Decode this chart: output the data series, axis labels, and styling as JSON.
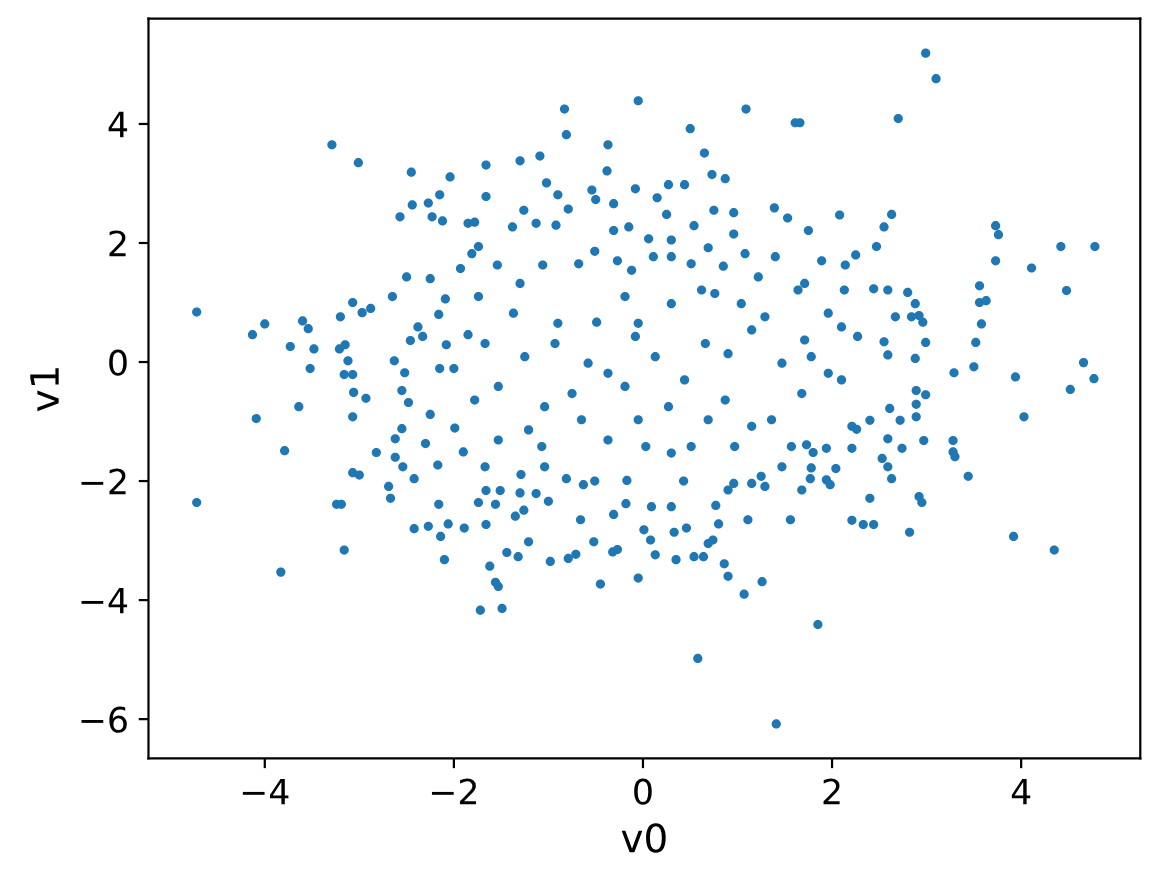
{
  "chart_data": {
    "type": "scatter",
    "xlabel": "v0",
    "ylabel": "v1",
    "marker": "circle",
    "xlim": [
      -5.23,
      5.26
    ],
    "ylim": [
      -6.66,
      5.77
    ],
    "xticks": [
      {
        "value": -4,
        "label": "−4"
      },
      {
        "value": -2,
        "label": "−2"
      },
      0,
      2,
      4
    ],
    "yticks": [
      {
        "value": -6,
        "label": "−6"
      },
      {
        "value": -4,
        "label": "−4"
      },
      {
        "value": -2,
        "label": "−2"
      },
      0,
      2,
      4
    ],
    "series": [
      {
        "color": "#1f77b4",
        "x": [
          -3.29,
          -3.01,
          -2.45,
          -2.04,
          -2.15,
          -2.27,
          -2.44,
          -2.57,
          -2.23,
          -2.12,
          -1.85,
          -1.74,
          -1.81,
          -1.93,
          -2.5,
          -2.25,
          -2.65,
          -3.07,
          -2.88,
          -2.97,
          -3.2,
          -3.6,
          -3.54,
          -4.0,
          -4.13,
          -4.72,
          -3.73,
          -3.48,
          -3.21,
          -3.15,
          -3.12,
          -3.52,
          -3.16,
          -3.07,
          -2.63,
          -2.52,
          -2.46,
          -2.38,
          -2.33,
          -2.09,
          -2.16,
          -2.08,
          -2.15,
          -2.0,
          -1.85,
          -4.72,
          -4.09,
          -3.64,
          -3.79,
          -3.83,
          -3.16,
          -3.24,
          -3.19,
          -3.06,
          -3.07,
          -2.93,
          -3.07,
          -3.0,
          -2.82,
          -2.69,
          -2.67,
          -2.55,
          -2.48,
          -2.55,
          -2.62,
          -2.62,
          -2.54,
          -2.42,
          -2.42,
          -2.27,
          -2.25,
          -2.3,
          -2.17,
          -2.16,
          -2.14,
          -2.06,
          -2.1,
          -1.89,
          -1.9,
          -1.72,
          -1.78,
          -1.99,
          -1.74,
          -0.83,
          -0.81,
          -0.05,
          1.09,
          1.61,
          1.66,
          0.5,
          -1.66,
          -1.3,
          -1.09,
          -0.37,
          -0.38,
          0.65,
          0.73,
          0.87,
          -1.02,
          -0.54,
          -0.5,
          -0.08,
          0.27,
          0.44,
          -1.66,
          -0.9,
          -0.79,
          -0.31,
          0.15,
          0.25,
          0.96,
          0.75,
          1.39,
          1.53,
          -1.26,
          -1.13,
          -0.92,
          -1.78,
          -1.38,
          -0.31,
          -0.15,
          0.54,
          0.96,
          0.06,
          0.3,
          1.75,
          2.99,
          3.1,
          2.7,
          2.08,
          2.63,
          2.55,
          3.73,
          3.76,
          3.73,
          2.47,
          4.42,
          4.78,
          4.11,
          4.48,
          3.56,
          3.56,
          3.63,
          3.58,
          3.52,
          3.5,
          3.29,
          3.94,
          4.66,
          4.77,
          4.52,
          2.99,
          2.88,
          2.88,
          2.84,
          2.92,
          2.96,
          2.8,
          2.44,
          2.59,
          2.67,
          2.55,
          2.27,
          2.59,
          2.25,
          1.89,
          2.14,
          2.13,
          1.96,
          2.1,
          1.78,
          1.96,
          2.1,
          1.85,
          2.82,
          2.21,
          2.33,
          2.44,
          2.4,
          3.92,
          4.35,
          4.03,
          3.44,
          3.28,
          3.28,
          3.3,
          2.92,
          2.95,
          2.97,
          2.89,
          2.89,
          2.89,
          2.99,
          2.72,
          2.74,
          2.59,
          2.61,
          2.53,
          2.59,
          2.63,
          2.21,
          2.26,
          2.21,
          2.4,
          2.04,
          1.94,
          1.98,
          1.78,
          1.77,
          1.68,
          1.73,
          1.8,
          1.94,
          0.58,
          1.41,
          -1.49,
          -1.62,
          -1.56,
          -1.53,
          -1.44,
          -1.32,
          -0.98,
          -0.79,
          -0.71,
          -0.45,
          -0.05,
          -0.52,
          -0.32,
          -0.27,
          0.13,
          0.35,
          0.54,
          0.64,
          0.86,
          0.9,
          1.07,
          1.26,
          -1.21,
          -1.66,
          -1.56,
          -1.35,
          -1.26,
          -1.66,
          -1.51,
          -1.3,
          -1.13,
          -1.0,
          -0.66,
          -0.31,
          -0.18,
          0.01,
          0.08,
          0.3,
          0.33,
          0.46,
          0.69,
          0.74,
          0.8,
          0.77,
          0.9,
          1.11,
          1.25,
          1.47,
          1.56,
          -0.81,
          -0.63,
          -0.51,
          -1.29,
          -1.04,
          -0.17,
          0.09,
          0.43,
          0.96,
          1.15,
          -1.74,
          -1.54,
          -1.3,
          -1.06,
          -0.68,
          -0.51,
          -0.27,
          -0.12,
          0.11,
          0.3,
          0.51,
          0.69,
          0.85,
          1.08,
          1.22,
          1.4,
          1.71,
          -1.37,
          -0.9,
          -0.49,
          -0.19,
          -0.05,
          0.3,
          0.62,
          0.76,
          1.04,
          1.29,
          1.64,
          -1.67,
          -1.25,
          -0.93,
          -0.58,
          -0.37,
          -0.08,
          0.13,
          0.44,
          0.66,
          0.9,
          1.15,
          1.47,
          1.71,
          -1.53,
          -1.53,
          -1.21,
          -1.04,
          -1.07,
          -0.75,
          -0.65,
          -0.37,
          -0.19,
          -0.05,
          0.03,
          0.27,
          0.3,
          0.51,
          0.69,
          0.87,
          0.97,
          1.15,
          1.36,
          1.57,
          1.68,
          1.29,
          -1.67
        ],
        "values": [
          3.65,
          3.35,
          3.19,
          3.11,
          2.81,
          2.67,
          2.64,
          2.44,
          2.44,
          2.37,
          2.33,
          1.94,
          1.82,
          1.57,
          1.43,
          1.4,
          1.1,
          1.0,
          0.9,
          0.83,
          0.76,
          0.69,
          0.56,
          0.64,
          0.46,
          0.84,
          0.26,
          0.22,
          0.22,
          0.29,
          0.02,
          -0.11,
          -0.21,
          -0.21,
          0.02,
          -0.18,
          0.36,
          0.59,
          0.43,
          1.06,
          0.8,
          0.29,
          -0.11,
          -0.11,
          0.46,
          -2.36,
          -0.95,
          -0.75,
          -1.49,
          -3.53,
          -3.16,
          -2.39,
          -2.39,
          -0.51,
          -0.92,
          -0.61,
          -1.86,
          -1.9,
          -1.52,
          -2.09,
          -2.29,
          -0.48,
          -0.68,
          -1.12,
          -1.29,
          -1.6,
          -1.76,
          -1.96,
          -2.8,
          -2.76,
          -0.88,
          -1.37,
          -1.73,
          -2.39,
          -2.93,
          -2.72,
          -3.32,
          -2.79,
          -1.51,
          -4.17,
          -0.64,
          -1.11,
          -2.36,
          4.25,
          3.82,
          4.39,
          4.25,
          4.02,
          4.02,
          3.92,
          3.31,
          3.38,
          3.46,
          3.65,
          3.21,
          3.51,
          3.15,
          3.08,
          3.01,
          2.89,
          2.73,
          2.91,
          2.98,
          2.98,
          2.78,
          2.81,
          2.57,
          2.66,
          2.76,
          2.48,
          2.51,
          2.55,
          2.59,
          2.42,
          2.55,
          2.33,
          2.3,
          2.35,
          2.27,
          2.21,
          2.27,
          2.29,
          2.15,
          2.07,
          2.05,
          2.21,
          5.19,
          4.76,
          4.09,
          2.47,
          2.48,
          2.27,
          2.29,
          2.14,
          1.7,
          1.94,
          1.94,
          1.94,
          1.58,
          1.2,
          1.28,
          1.0,
          1.03,
          0.64,
          0.33,
          -0.08,
          -0.18,
          -0.25,
          -0.01,
          -0.28,
          -0.46,
          0.33,
          0.06,
          0.98,
          0.76,
          0.78,
          0.67,
          1.17,
          1.23,
          1.21,
          0.76,
          0.34,
          0.43,
          0.12,
          1.8,
          1.7,
          1.63,
          1.21,
          0.82,
          0.59,
          0.09,
          -0.19,
          -0.3,
          -4.41,
          -2.86,
          -2.66,
          -2.73,
          -2.73,
          -2.29,
          -2.93,
          -3.16,
          -0.92,
          -1.92,
          -1.32,
          -1.51,
          -1.59,
          -2.26,
          -2.36,
          -1.32,
          -0.48,
          -0.71,
          -0.92,
          -0.55,
          -0.98,
          -1.45,
          -1.29,
          -0.78,
          -1.62,
          -1.76,
          -1.96,
          -1.08,
          -1.13,
          -1.45,
          -0.98,
          -1.79,
          -1.98,
          -2.06,
          -1.78,
          -1.96,
          -2.15,
          -1.39,
          -1.52,
          -1.45,
          -4.98,
          -6.08,
          -4.14,
          -3.43,
          -3.7,
          -3.77,
          -3.2,
          -3.27,
          -3.35,
          -3.3,
          -3.23,
          -3.73,
          -3.63,
          -3.02,
          -3.19,
          -3.15,
          -3.24,
          -3.32,
          -3.27,
          -3.27,
          -3.39,
          -3.6,
          -3.9,
          -3.69,
          -3.02,
          -2.73,
          -2.39,
          -2.59,
          -2.49,
          -2.16,
          -2.16,
          -2.2,
          -2.21,
          -2.34,
          -2.65,
          -2.56,
          -2.38,
          -2.82,
          -2.99,
          -2.43,
          -2.86,
          -2.79,
          -3.05,
          -2.99,
          -2.72,
          -2.41,
          -2.15,
          -2.65,
          -1.92,
          -1.76,
          -2.65,
          -1.96,
          -2.06,
          -2.0,
          -1.89,
          -1.76,
          -1.99,
          -2.43,
          -2.0,
          -2.04,
          -2.04,
          1.1,
          1.63,
          1.32,
          1.63,
          1.65,
          1.86,
          1.7,
          1.54,
          1.77,
          1.77,
          1.65,
          1.92,
          1.61,
          1.82,
          1.43,
          1.77,
          1.32,
          0.82,
          0.65,
          0.67,
          1.1,
          0.65,
          0.98,
          1.21,
          1.15,
          0.98,
          0.76,
          1.21,
          0.31,
          0.09,
          0.31,
          -0.02,
          -0.19,
          0.43,
          0.09,
          -0.3,
          0.31,
          0.14,
          0.54,
          -0.02,
          0.37,
          -0.41,
          -1.31,
          -1.14,
          -0.75,
          -1.42,
          -0.53,
          -0.97,
          -1.31,
          -0.41,
          -0.97,
          -1.42,
          -0.75,
          -1.53,
          -1.42,
          -0.97,
          -0.64,
          -1.42,
          -1.08,
          -0.97,
          -1.42,
          -0.53,
          -2.09,
          -1.76
        ]
      }
    ]
  }
}
